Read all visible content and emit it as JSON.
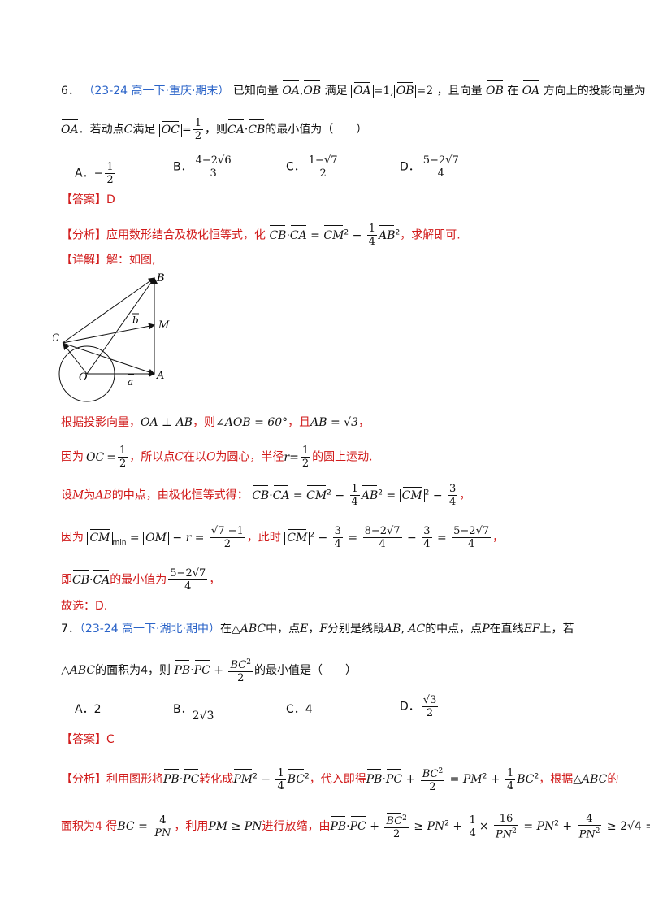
{
  "q6": {
    "number": "6．",
    "source": "（23-24 高一下·重庆·期末）",
    "stem_1": "已知向量",
    "stem_2": "满足",
    "stem_3": "，且向量",
    "stem_4": "在",
    "stem_5": "方向上的投影向量为",
    "stem_6": "．若动点",
    "stem_7": "满足",
    "stem_8": "，则",
    "stem_9": "的最小值为（　　）",
    "options": [
      {
        "label": "A．",
        "text": "−1/2"
      },
      {
        "label": "B．",
        "text": "(4−2√6)/3"
      },
      {
        "label": "C．",
        "text": "(1−√7)/2"
      },
      {
        "label": "D．",
        "text": "(5−2√7)/4"
      }
    ],
    "answer_tag": "【答案】",
    "answer": "D",
    "analysis_tag": "【分析】",
    "analysis_1": "应用数形结合及极化恒等式，化",
    "analysis_2": "，求解即可.",
    "detail_tag": "【详解】",
    "detail_intro": "解：如图,",
    "figure_labels": {
      "B": "B",
      "M": "M",
      "C": "C",
      "O": "O",
      "A": "A",
      "a": "a",
      "b": "b"
    },
    "sol_1a": "根据投影向量，",
    "sol_1b": "OA ⊥ AB",
    "sol_1c": "，则",
    "sol_1d": "∠AOB = 60°",
    "sol_1e": "，且",
    "sol_1f": "AB = √3",
    "sol_2a": "因为",
    "sol_2b": "，所以点",
    "sol_2c": "在以",
    "sol_2d": "为圆心，半径",
    "sol_2e": "的圆上运动.",
    "sol_3a": "设",
    "sol_3b": "为",
    "sol_3c": "的中点，由极化恒等式得：",
    "sol_4a": "因为",
    "sol_4b": "，此时",
    "sol_5a": "即",
    "sol_5b": "的最小值为",
    "choose": "故选：D."
  },
  "q7": {
    "number": "7．",
    "source": "（23-24 高一下·湖北·期中）",
    "stem_1": "在",
    "stem_2": "中，点",
    "stem_3": "分别是线段",
    "stem_4": "的中点，点",
    "stem_5": "在直线",
    "stem_6": "上，若",
    "stem_7": "的面积为4，则",
    "stem_8": "的最小值是（　　）",
    "options": [
      {
        "label": "A．",
        "text": "2"
      },
      {
        "label": "B．",
        "text": "2√3"
      },
      {
        "label": "C．",
        "text": "4"
      },
      {
        "label": "D．",
        "text": "√3/2"
      }
    ],
    "answer_tag": "【答案】",
    "answer": "C",
    "analysis_tag": "【分析】",
    "analysis_1": "利用图形将",
    "analysis_2": "转化成",
    "analysis_3": "，代入即得",
    "analysis_4": "，根据",
    "analysis_5": "的",
    "analysis_6": "面积为4 得",
    "analysis_7": "，利用",
    "analysis_8": "进行放缩，由"
  }
}
